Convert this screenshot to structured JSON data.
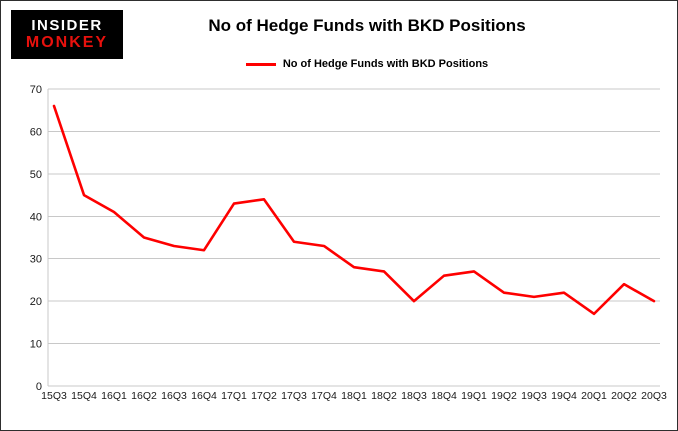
{
  "logo": {
    "line1": "INSIDER",
    "line2": "MONKEY"
  },
  "colors": {
    "line": "#fe0000",
    "logo_bg": "#000000",
    "logo_insider": "#ffffff",
    "logo_monkey": "#e8110d",
    "grid": "#c8c8c8",
    "axis_text": "#1a1a1a",
    "frame_border": "#2e2e2e",
    "background": "#ffffff"
  },
  "chart_data": {
    "type": "line",
    "title": "No of Hedge Funds with BKD Positions",
    "categories": [
      "15Q3",
      "15Q4",
      "16Q1",
      "16Q2",
      "16Q3",
      "16Q4",
      "17Q1",
      "17Q2",
      "17Q3",
      "17Q4",
      "18Q1",
      "18Q2",
      "18Q3",
      "18Q4",
      "19Q1",
      "19Q2",
      "19Q3",
      "19Q4",
      "20Q1",
      "20Q2",
      "20Q3"
    ],
    "series": [
      {
        "name": "No of Hedge Funds with BKD Positions",
        "color": "#fe0000",
        "values": [
          66,
          45,
          41,
          35,
          33,
          32,
          43,
          44,
          34,
          33,
          28,
          27,
          20,
          26,
          27,
          22,
          21,
          22,
          17,
          24,
          20
        ]
      }
    ],
    "xlabel": "",
    "ylabel": "",
    "ylim": [
      0,
      70
    ],
    "ytick_step": 10,
    "yticks": [
      0,
      10,
      20,
      30,
      40,
      50,
      60,
      70
    ],
    "grid": true,
    "legend_position": "top-center"
  }
}
